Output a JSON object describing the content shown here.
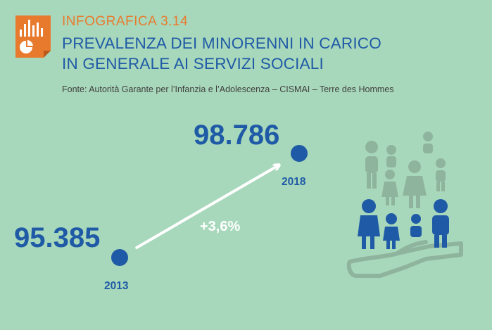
{
  "header": {
    "kicker": "INFOGRAFICA 3.14",
    "title_line1": "PREVALENZA DEI MINORENNI IN CARICO",
    "title_line2": "IN GENERALE AI SERVIZI SOCIALI",
    "source": "Fonte: Autorità Garante per l’Infanzia e l’Adolescenza – CISMAI – Terre des Hommes"
  },
  "chart_data": {
    "type": "line",
    "title": "PREVALENZA DEI MINORENNI IN CARICO IN GENERALE AI SERVIZI SOCIALI",
    "x": [
      "2013",
      "2018"
    ],
    "series": [
      {
        "values": [
          95385,
          98786
        ]
      }
    ],
    "value_labels": [
      "95.385",
      "98.786"
    ],
    "annotation": "+3,6%"
  },
  "colors": {
    "background": "#a8d8bb",
    "accent_orange": "#e87a2e",
    "blue": "#1f5aa6",
    "arrow": "#ffffff",
    "figures_gray": "#8fb49d"
  },
  "icons": {
    "logo": "chart-document-icon",
    "illustration": "family-hand-illustration"
  }
}
